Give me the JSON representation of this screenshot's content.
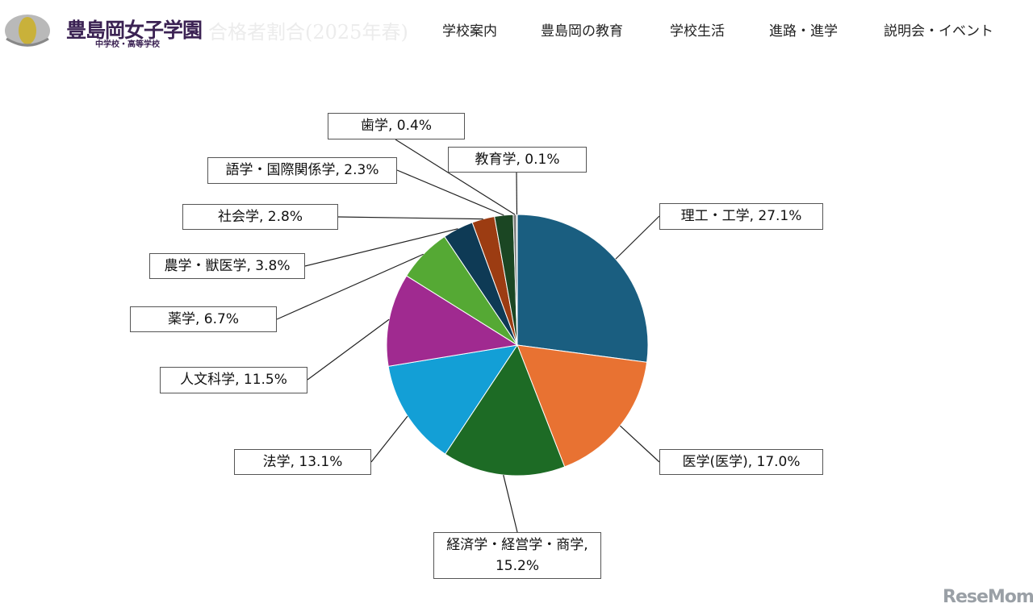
{
  "header": {
    "logo_title": "豊島岡女子学園",
    "logo_subtitle": "中学校・高等学校",
    "page_title": "合格者割合(2025年春)",
    "nav": [
      "学校案内",
      "豊島岡の教育",
      "学校生活",
      "進路・進学",
      "説明会・イベント"
    ]
  },
  "chart_data": {
    "type": "pie",
    "values": [
      27.1,
      17.0,
      15.2,
      13.1,
      11.5,
      6.7,
      3.8,
      2.8,
      2.3,
      0.4,
      0.1
    ],
    "value_labels": [
      "理工・工学, 27.1%",
      "医学(医学), 17.0%",
      "経済学・経営学・商学,\n15.2%",
      "法学, 13.1%",
      "人文科学, 11.5%",
      "薬学, 6.7%",
      "農学・獣医学, 3.8%",
      "社会学, 2.8%",
      "語学・国際関係学, 2.3%",
      "歯学, 0.4%",
      "教育学, 0.1%"
    ],
    "colors": [
      "#1a5e80",
      "#e87232",
      "#1d6b25",
      "#139fd6",
      "#a02a90",
      "#55a934",
      "#0e3a55",
      "#9c3c12",
      "#1b4623",
      "#7a7a7a",
      "#4a90c0"
    ]
  },
  "watermark": "ReseMom"
}
